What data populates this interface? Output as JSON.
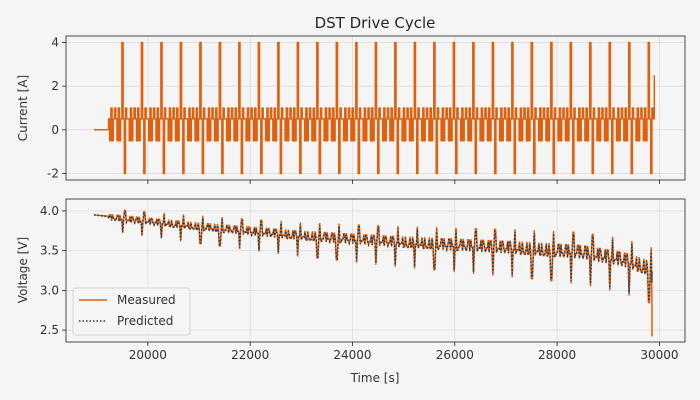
{
  "chart_data": {
    "type": "line",
    "title": "DST Drive Cycle",
    "xlabel": "Time [s]",
    "xlim": [
      18400,
      30500
    ],
    "x_ticks": [
      20000,
      22000,
      24000,
      26000,
      28000,
      30000
    ],
    "grid": true,
    "colors": {
      "measured": "#e0600f",
      "predicted": "#2b3a4a",
      "background": "#f5f5f5",
      "grid": "#dddddd"
    },
    "panels": [
      {
        "id": "current",
        "ylabel": "Current [A]",
        "ylim": [
          -2.3,
          4.3
        ],
        "y_ticks": [
          -2,
          0,
          2,
          4
        ],
        "series": [
          {
            "name": "",
            "style": "solid",
            "segments": [
              {
                "x_start": 18950,
                "x_end": 19230,
                "value": 0
              }
            ],
            "cycle": {
              "x_start": 19230,
              "x_end": 29900,
              "n_cycles": 28,
              "pattern": [
                0.5,
                -0.5,
                1,
                -0.5,
                0.5,
                1,
                0.5,
                -0.5,
                1,
                -0.5,
                0.5,
                4,
                0.5,
                -2,
                1,
                0.5
              ]
            },
            "end_point": {
              "x": 29900,
              "value": 2.5
            }
          }
        ]
      },
      {
        "id": "voltage",
        "ylabel": "Voltage [V]",
        "ylim": [
          2.35,
          4.15
        ],
        "y_ticks": [
          2.5,
          3.0,
          3.5,
          4.0
        ],
        "legend": "lower-left",
        "series": [
          {
            "name": "Measured",
            "style": "solid",
            "baseline": {
              "x": [
                18950,
                19300,
                21000,
                23000,
                25000,
                27000,
                28500,
                29300,
                29850
              ],
              "y": [
                3.95,
                3.93,
                3.82,
                3.71,
                3.63,
                3.57,
                3.51,
                3.42,
                3.3
              ]
            },
            "end_drop": [
              2.8,
              2.42
            ]
          },
          {
            "name": "Predicted",
            "style": "dotted",
            "baseline": {
              "x": [
                18950,
                19300,
                21000,
                23000,
                25000,
                27000,
                28500,
                29300,
                29850
              ],
              "y": [
                3.95,
                3.92,
                3.81,
                3.7,
                3.62,
                3.56,
                3.5,
                3.41,
                3.29
              ]
            },
            "end_drop": [
              3.1,
              3.25
            ]
          }
        ]
      }
    ]
  }
}
